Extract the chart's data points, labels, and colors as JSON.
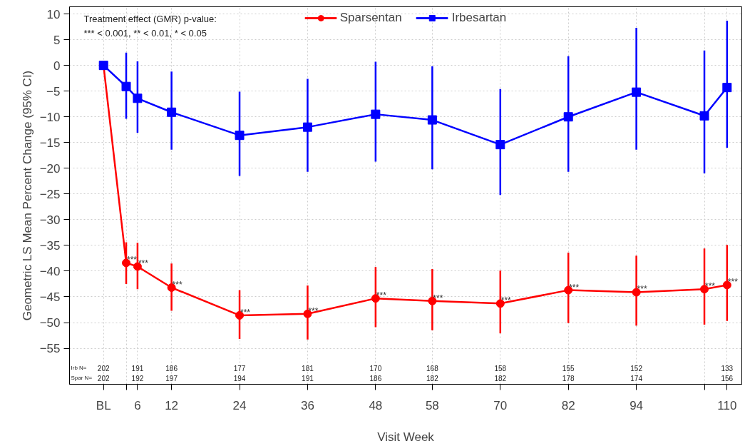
{
  "chart_data": {
    "type": "line",
    "xlabel": "Visit Week",
    "ylabel": "Geometric LS Mean Percent Change (95% CI)",
    "x": [
      0,
      4,
      6,
      12,
      24,
      36,
      48,
      58,
      70,
      82,
      94,
      106,
      110
    ],
    "xlim": [
      -6,
      112.6
    ],
    "ylim": [
      -62,
      11.4
    ],
    "xticks": [
      {
        "value": 0,
        "label": "BL"
      },
      {
        "value": 4,
        "label": null
      },
      6,
      12,
      24,
      36,
      48,
      58,
      70,
      82,
      94,
      {
        "value": 106,
        "label": null
      },
      110
    ],
    "yticks": [
      -55,
      -50,
      -45,
      -40,
      -35,
      -30,
      -25,
      -20,
      -15,
      -10,
      -5,
      0,
      5,
      10
    ],
    "grid": true,
    "legend": "top",
    "line_style": "solid",
    "series": [
      {
        "name": "Sparsentan",
        "color": "#ff0000",
        "marker": "circle",
        "values": [
          0,
          -38.4,
          -39.1,
          -43.2,
          -48.6,
          -48.3,
          -45.3,
          -45.8,
          -46.3,
          -43.7,
          -44.1,
          -43.5,
          -42.7
        ],
        "errors": [
          null,
          [
            -42.5,
            -34.4
          ],
          [
            -43.5,
            -34.5
          ],
          [
            -47.7,
            -38.5
          ],
          [
            -53.2,
            -43.7
          ],
          [
            -53.3,
            -42.8
          ],
          [
            -50.9,
            -39.2
          ],
          [
            -51.5,
            -39.6
          ],
          [
            -52.1,
            -39.9
          ],
          [
            -50.1,
            -36.4
          ],
          [
            -50.6,
            -37.0
          ],
          [
            -50.4,
            -35.6
          ],
          [
            -49.7,
            -34.9
          ]
        ]
      },
      {
        "name": "Irbesartan",
        "color": "#0000ff",
        "marker": "square",
        "values": [
          0,
          -4.1,
          -6.4,
          -9.1,
          -13.6,
          -12.0,
          -9.5,
          -10.6,
          -15.4,
          -10.0,
          -5.2,
          -9.8,
          -4.3
        ],
        "errors": [
          null,
          [
            -10.4,
            2.5
          ],
          [
            -13.1,
            0.8
          ],
          [
            -16.4,
            -1.2
          ],
          [
            -21.5,
            -5.1
          ],
          [
            -20.7,
            -2.6
          ],
          [
            -18.7,
            0.7
          ],
          [
            -20.2,
            -0.2
          ],
          [
            -25.2,
            -4.6
          ],
          [
            -20.7,
            1.8
          ],
          [
            -16.4,
            7.3
          ],
          [
            -21.0,
            2.9
          ],
          [
            -16.0,
            8.7
          ]
        ]
      }
    ],
    "annotations": [
      "Treatment effect (GMR) p-value:",
      "*** < 0.001, ** < 0.01, * < 0.05",
      "Irb N=",
      "202",
      "191",
      "186",
      "177",
      "181",
      "170",
      "168",
      "158",
      "155",
      "152",
      "133",
      "Spar N=",
      "202",
      "192",
      "197",
      "194",
      "191",
      "186",
      "182",
      "182",
      "178",
      "174",
      "156",
      {
        "text": "***",
        "x": 4,
        "y": -38.4
      },
      {
        "text": "***",
        "x": 6,
        "y": -39.1
      },
      {
        "text": "***",
        "x": 12,
        "y": -43.2
      },
      {
        "text": "***",
        "x": 24,
        "y": -48.6
      },
      {
        "text": "***",
        "x": 36,
        "y": -48.3
      },
      {
        "text": "***",
        "x": 48,
        "y": -45.3
      },
      {
        "text": "***",
        "x": 58,
        "y": -45.8
      },
      {
        "text": "***",
        "x": 70,
        "y": -46.3
      },
      {
        "text": "***",
        "x": 82,
        "y": -43.7
      },
      {
        "text": "***",
        "x": 94,
        "y": -44.1
      },
      {
        "text": "***",
        "x": 106,
        "y": -43.5
      },
      {
        "text": "***",
        "x": 110,
        "y": -42.7
      }
    ]
  }
}
